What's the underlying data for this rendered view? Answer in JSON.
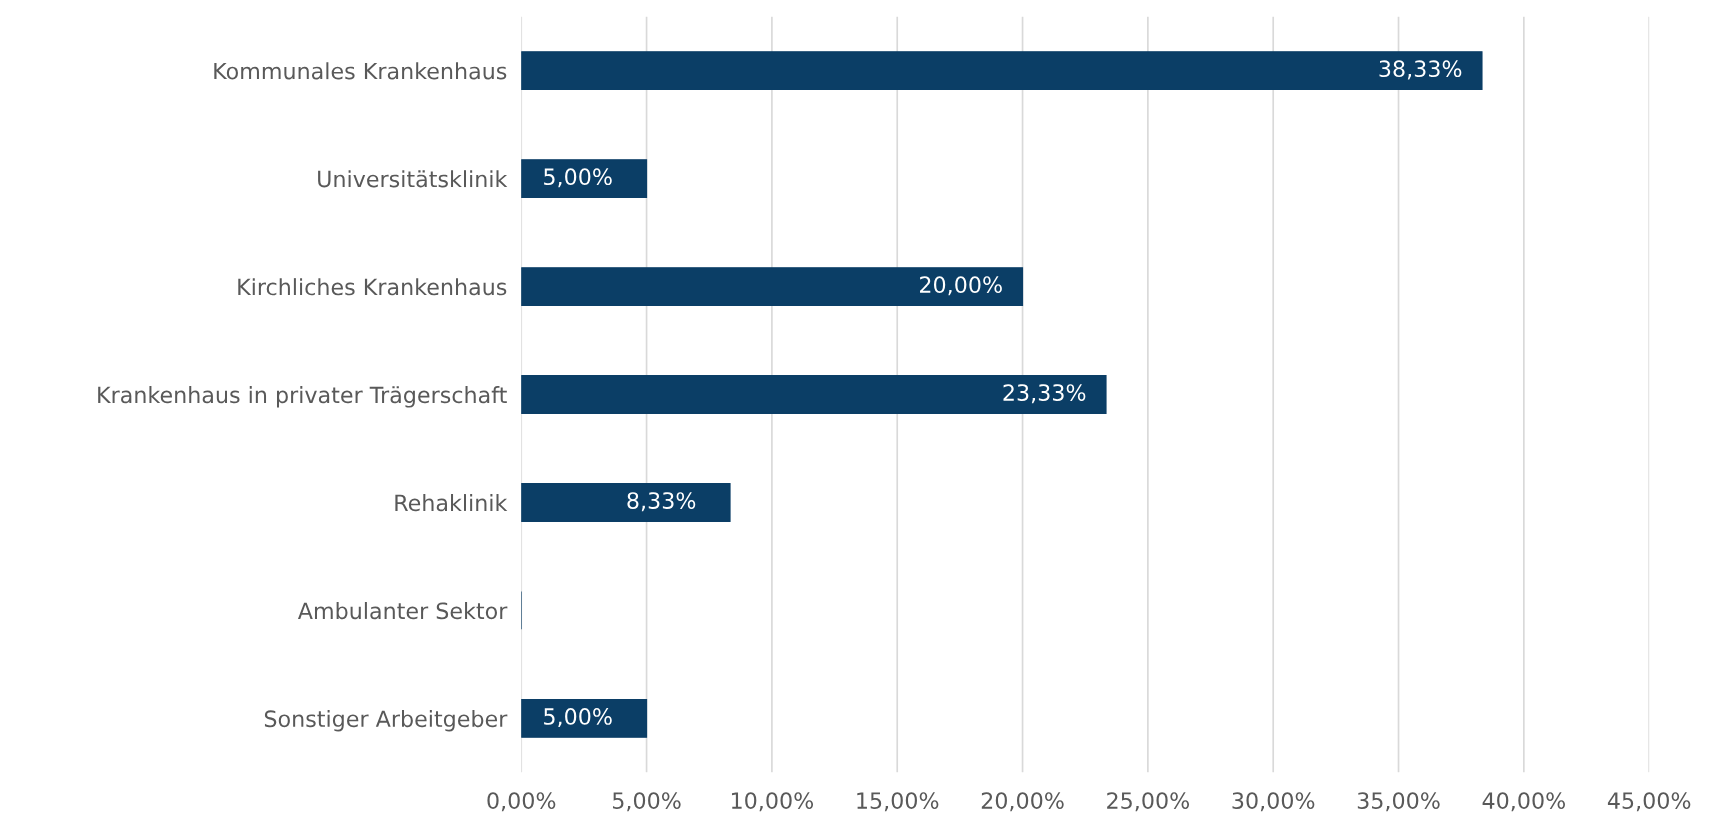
{
  "chart_data": {
    "type": "bar",
    "orientation": "horizontal",
    "categories": [
      "Kommunales Krankenhaus",
      "Universitätsklinik",
      "Kirchliches Krankenhaus",
      "Krankenhaus in privater Trägerschaft",
      "Rehaklinik",
      "Ambulanter Sektor",
      "Sonstiger Arbeitgeber"
    ],
    "values": [
      38.33,
      5.0,
      20.0,
      23.33,
      8.33,
      0,
      5.0
    ],
    "value_labels": [
      "38,33%",
      "5,00%",
      "20,00%",
      "23,33%",
      "8,33%",
      null,
      "5,00%"
    ],
    "color": "#0b3e66",
    "xlim": [
      0,
      45
    ],
    "xticks": [
      {
        "value": 0,
        "label": "0,00%"
      },
      {
        "value": 5,
        "label": "5,00%"
      },
      {
        "value": 10,
        "label": "10,00%"
      },
      {
        "value": 15,
        "label": "15,00%"
      },
      {
        "value": 20,
        "label": "20,00%"
      },
      {
        "value": 25,
        "label": "25,00%"
      },
      {
        "value": 30,
        "label": "30,00%"
      },
      {
        "value": 35,
        "label": "35,00%"
      },
      {
        "value": 40,
        "label": "40,00%"
      },
      {
        "value": 45,
        "label": "45,00%"
      }
    ],
    "grid": "x",
    "legend": false
  }
}
